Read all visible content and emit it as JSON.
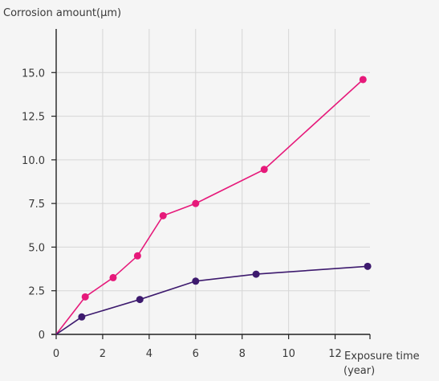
{
  "chart_data": {
    "type": "line",
    "ylabel": "Corrosion amount(μm)",
    "xlabel_line1": "Exposure time",
    "xlabel_line2": "(year)",
    "xlim": [
      0,
      13.5
    ],
    "ylim": [
      0,
      17.5
    ],
    "x_ticks": [
      0,
      2,
      4,
      6,
      8,
      10,
      12
    ],
    "x_tick_labels": [
      "0",
      "2",
      "4",
      "6",
      "8",
      "10",
      "12"
    ],
    "y_ticks": [
      0,
      2.5,
      5.0,
      7.5,
      10.0,
      12.5,
      15.0
    ],
    "y_tick_labels": [
      "0",
      "2.5",
      "5.0",
      "7.5",
      "10.0",
      "12.5",
      "15.0"
    ],
    "grid": true,
    "series": [
      {
        "color": "#e6197a",
        "points": [
          [
            0,
            0
          ],
          [
            1.25,
            2.15
          ],
          [
            2.45,
            3.25
          ],
          [
            3.5,
            4.5
          ],
          [
            4.6,
            6.8
          ],
          [
            6.0,
            7.5
          ],
          [
            8.95,
            9.45
          ],
          [
            13.2,
            14.6
          ]
        ]
      },
      {
        "color": "#3d1a6e",
        "points": [
          [
            0,
            0
          ],
          [
            1.1,
            1.0
          ],
          [
            3.6,
            2.0
          ],
          [
            6.0,
            3.05
          ],
          [
            8.6,
            3.45
          ],
          [
            13.4,
            3.9
          ]
        ]
      }
    ]
  }
}
